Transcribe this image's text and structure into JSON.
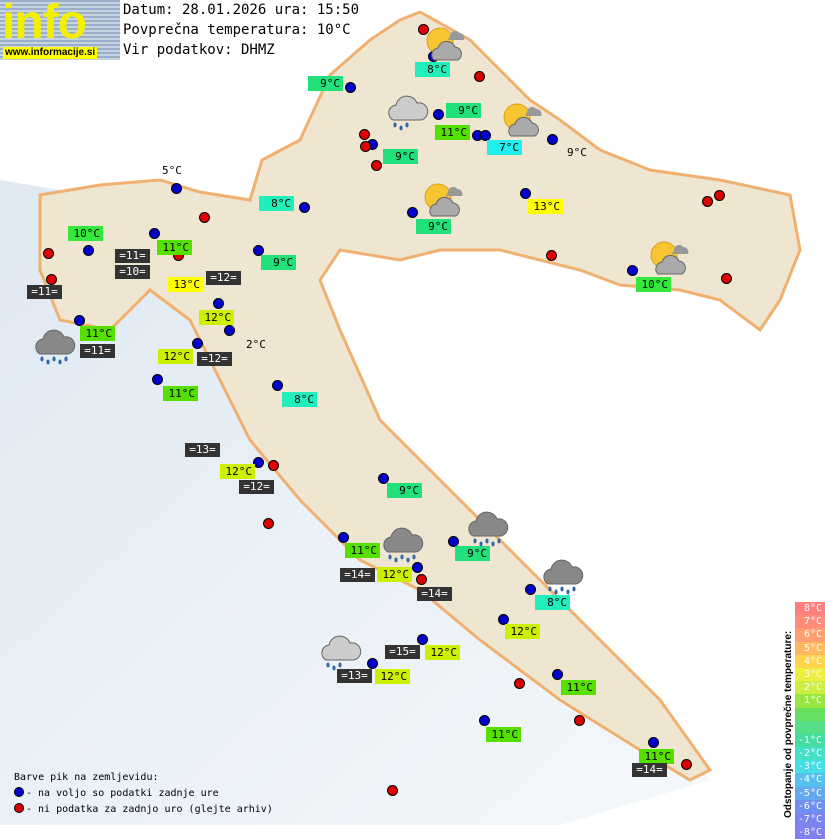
{
  "header": {
    "logo_text": "info",
    "logo_url": "www.informacije.si",
    "date_line": "Datum: 28.01.2026 ura: 15:50",
    "avg_temp_line": "Povprečna temperatura: 10°C",
    "source_line": "Vir podatkov: DHMZ"
  },
  "deviation_colors": {
    "3": "#ffff00",
    "2": "#ccf000",
    "1": "#55e000",
    "0": "#33e83a",
    "-1": "#22e07a",
    "-2": "#22eebb",
    "-3": "#22eeee"
  },
  "land_temps": [
    {
      "t": "8°C",
      "d": "-2"
    },
    {
      "t": "9°C",
      "d": "-1"
    },
    {
      "t": "9°C",
      "d": "-1"
    },
    {
      "t": "11°C",
      "d": "1"
    },
    {
      "t": "7°C",
      "d": "-3"
    },
    {
      "t": "9°C",
      "d": "none"
    },
    {
      "t": "9°C",
      "d": "-1"
    },
    {
      "t": "8°C",
      "d": "-2"
    },
    {
      "t": "13°C",
      "d": "3"
    },
    {
      "t": "9°C",
      "d": "-1"
    },
    {
      "t": "10°C",
      "d": "0"
    },
    {
      "t": "11°C",
      "d": "1"
    },
    {
      "t": "9°C",
      "d": "-1"
    },
    {
      "t": "13°C",
      "d": "3"
    },
    {
      "t": "10°C",
      "d": "0"
    },
    {
      "t": "12°C",
      "d": "2"
    },
    {
      "t": "11°C",
      "d": "1"
    },
    {
      "t": "2°C",
      "d": "none"
    },
    {
      "t": "12°C",
      "d": "2"
    },
    {
      "t": "11°C",
      "d": "1"
    },
    {
      "t": "8°C",
      "d": "-2"
    },
    {
      "t": "12°C",
      "d": "2"
    },
    {
      "t": "9°C",
      "d": "-1"
    },
    {
      "t": "11°C",
      "d": "1"
    },
    {
      "t": "9°C",
      "d": "-1"
    },
    {
      "t": "12°C",
      "d": "2"
    },
    {
      "t": "8°C",
      "d": "-2"
    },
    {
      "t": "12°C",
      "d": "2"
    },
    {
      "t": "12°C",
      "d": "2"
    },
    {
      "t": "12°C",
      "d": "2"
    },
    {
      "t": "11°C",
      "d": "1"
    },
    {
      "t": "11°C",
      "d": "1"
    },
    {
      "t": "11°C",
      "d": "1"
    },
    {
      "t": "5°C",
      "d": "none"
    }
  ],
  "sea_temps": [
    "=11=",
    "=10=",
    "=12=",
    "=11=",
    "=11=",
    "=12=",
    "=13=",
    "=12=",
    "=14=",
    "=14=",
    "=15=",
    "=13=",
    "=14="
  ],
  "weather_icons": [
    "partly-cloudy",
    "partly-cloudy",
    "partly-cloudy",
    "partly-cloudy",
    "light-rain",
    "heavy-rain",
    "heavy-rain",
    "heavy-rain",
    "heavy-rain",
    "light-rain"
  ],
  "station_colors": {
    "available": "#0000cc",
    "missing": "#dd0000"
  },
  "legend": {
    "title": "Barve pik na zemljevidu:",
    "available": "- na voljo so podatki zadnje ure",
    "missing": "- ni podatka za zadnjo uro (glejte arhiv)"
  },
  "scale": {
    "title": "Odstopanje od povprečne temperature:",
    "items": [
      {
        "t": "8°C",
        "c": "#ff7f7f"
      },
      {
        "t": "7°C",
        "c": "#ff8c7a"
      },
      {
        "t": "6°C",
        "c": "#ff9f70"
      },
      {
        "t": "5°C",
        "c": "#ffb860"
      },
      {
        "t": "4°C",
        "c": "#ffd44a"
      },
      {
        "t": "3°C",
        "c": "#eeee40"
      },
      {
        "t": "2°C",
        "c": "#ccee40"
      },
      {
        "t": "1°C",
        "c": "#99e640"
      },
      {
        "t": "",
        "c": "#66e060"
      },
      {
        "t": "",
        "c": "#55dd88"
      },
      {
        "t": "-1°C",
        "c": "#44dda0"
      },
      {
        "t": "-2°C",
        "c": "#44e0c8"
      },
      {
        "t": "-3°C",
        "c": "#44dde8"
      },
      {
        "t": "-4°C",
        "c": "#55c0ee"
      },
      {
        "t": "-5°C",
        "c": "#66a8f0"
      },
      {
        "t": "-6°C",
        "c": "#7090f0"
      },
      {
        "t": "-7°C",
        "c": "#7a84f0"
      },
      {
        "t": "-8°C",
        "c": "#8080f0"
      }
    ]
  }
}
